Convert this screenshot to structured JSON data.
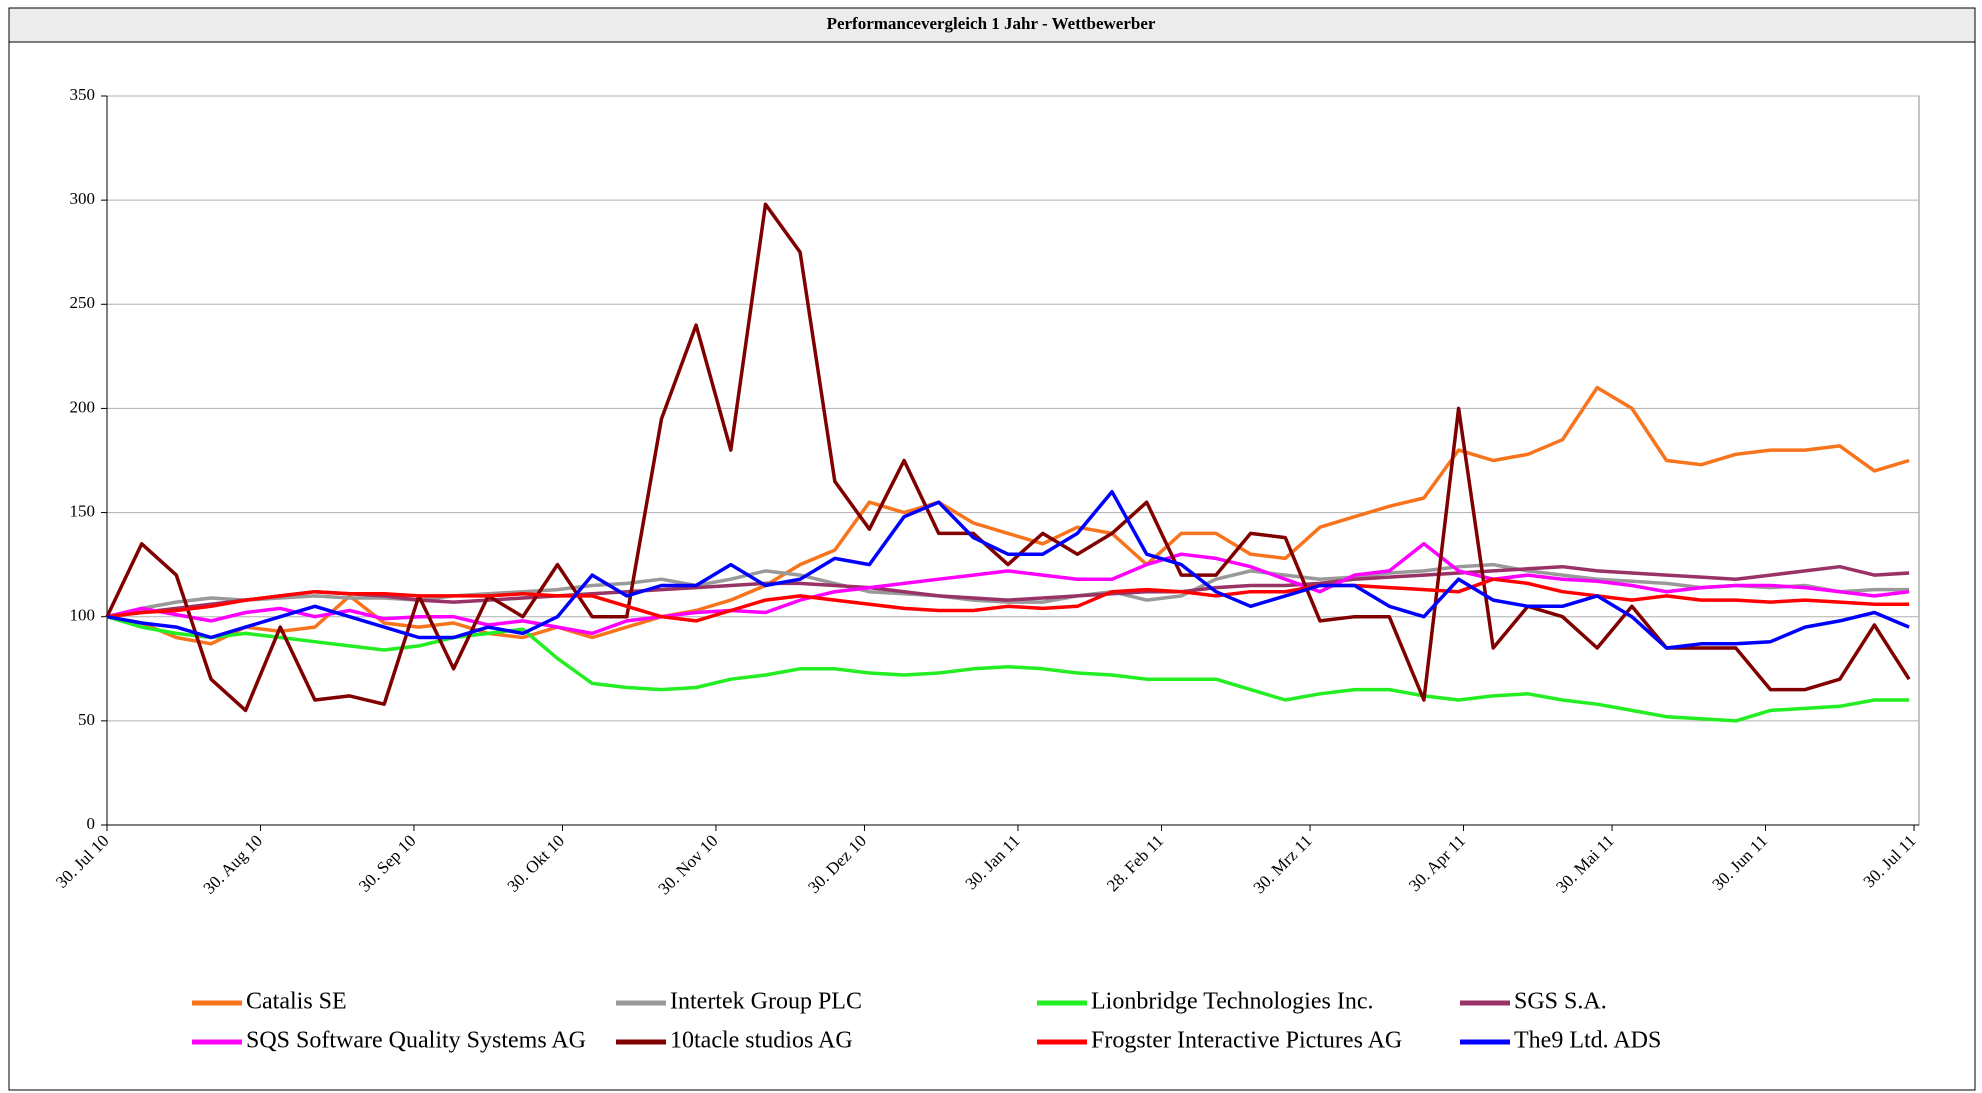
{
  "chart_data": {
    "type": "line",
    "title": "Performancevergleich 1 Jahr - Wettbewerber",
    "x": [
      "2010-07-30",
      "2010-08-06",
      "2010-08-13",
      "2010-08-20",
      "2010-08-27",
      "2010-09-03",
      "2010-09-10",
      "2010-09-17",
      "2010-09-24",
      "2010-10-01",
      "2010-10-08",
      "2010-10-15",
      "2010-10-22",
      "2010-10-29",
      "2010-11-05",
      "2010-11-12",
      "2010-11-19",
      "2010-11-26",
      "2010-12-03",
      "2010-12-10",
      "2010-12-17",
      "2010-12-24",
      "2010-12-31",
      "2011-01-07",
      "2011-01-14",
      "2011-01-21",
      "2011-01-28",
      "2011-02-04",
      "2011-02-11",
      "2011-02-18",
      "2011-02-25",
      "2011-03-04",
      "2011-03-11",
      "2011-03-18",
      "2011-03-25",
      "2011-04-01",
      "2011-04-08",
      "2011-04-15",
      "2011-04-22",
      "2011-04-29",
      "2011-05-06",
      "2011-05-13",
      "2011-05-20",
      "2011-05-27",
      "2011-06-03",
      "2011-06-10",
      "2011-06-17",
      "2011-06-24",
      "2011-07-01",
      "2011-07-08",
      "2011-07-15",
      "2011-07-22",
      "2011-07-29"
    ],
    "xlim": [
      "2010-07-30",
      "2011-07-31"
    ],
    "xticks": [
      {
        "value": "2010-07-30",
        "label": "30. Jul 10"
      },
      {
        "value": "2010-08-30",
        "label": "30. Aug 10"
      },
      {
        "value": "2010-09-30",
        "label": "30. Sep 10"
      },
      {
        "value": "2010-10-30",
        "label": "30. Okt 10"
      },
      {
        "value": "2010-11-30",
        "label": "30. Nov 10"
      },
      {
        "value": "2010-12-30",
        "label": "30. Dez 10"
      },
      {
        "value": "2011-01-30",
        "label": "30. Jan 11"
      },
      {
        "value": "2011-02-28",
        "label": "28. Feb 11"
      },
      {
        "value": "2011-03-30",
        "label": "30. Mrz 11"
      },
      {
        "value": "2011-04-30",
        "label": "30. Apr 11"
      },
      {
        "value": "2011-05-30",
        "label": "30. Mai 11"
      },
      {
        "value": "2011-06-30",
        "label": "30. Jun 11"
      },
      {
        "value": "2011-07-30",
        "label": "30. Jul 11"
      }
    ],
    "ylim": [
      0,
      350
    ],
    "yticks": [
      0,
      50,
      100,
      150,
      200,
      250,
      300,
      350
    ],
    "grid": true,
    "legend": "bottom",
    "series": [
      {
        "name": "Catalis SE",
        "color": "#f7731c",
        "values": [
          100,
          97,
          90,
          87,
          95,
          93,
          95,
          110,
          97,
          95,
          97,
          92,
          90,
          95,
          90,
          95,
          100,
          103,
          108,
          115,
          125,
          132,
          155,
          150,
          155,
          145,
          140,
          135,
          143,
          140,
          125,
          140,
          140,
          130,
          128,
          143,
          148,
          153,
          157,
          180,
          175,
          178,
          185,
          210,
          200,
          175,
          173,
          178,
          180,
          180,
          182,
          170,
          175
        ]
      },
      {
        "name": "Intertek Group PLC",
        "color": "#999999",
        "values": [
          100,
          104,
          107,
          109,
          108,
          109,
          110,
          109,
          109,
          108,
          110,
          111,
          112,
          113,
          115,
          116,
          118,
          115,
          118,
          122,
          120,
          116,
          112,
          111,
          110,
          108,
          107,
          107,
          110,
          112,
          108,
          110,
          118,
          122,
          120,
          118,
          119,
          121,
          122,
          124,
          125,
          122,
          120,
          118,
          117,
          116,
          114,
          115,
          114,
          115,
          112,
          113,
          113
        ]
      },
      {
        "name": "Lionbridge Technologies Inc.",
        "color": "#22ee22",
        "values": [
          100,
          95,
          92,
          90,
          92,
          90,
          88,
          86,
          84,
          86,
          90,
          92,
          94,
          80,
          68,
          66,
          65,
          66,
          70,
          72,
          75,
          75,
          73,
          72,
          73,
          75,
          76,
          75,
          73,
          72,
          70,
          70,
          70,
          65,
          60,
          63,
          65,
          65,
          62,
          60,
          62,
          63,
          60,
          58,
          55,
          52,
          51,
          50,
          55,
          56,
          57,
          60,
          60
        ]
      },
      {
        "name": "SGS S.A.",
        "color": "#993366",
        "values": [
          100,
          102,
          104,
          106,
          108,
          110,
          112,
          111,
          110,
          108,
          107,
          108,
          109,
          110,
          111,
          112,
          113,
          114,
          115,
          116,
          116,
          115,
          114,
          112,
          110,
          109,
          108,
          109,
          110,
          111,
          112,
          112,
          114,
          115,
          115,
          116,
          118,
          119,
          120,
          121,
          122,
          123,
          124,
          122,
          121,
          120,
          119,
          118,
          120,
          122,
          124,
          120,
          121
        ]
      },
      {
        "name": "SQS Software Quality Systems AG",
        "color": "#ff00ff",
        "values": [
          100,
          104,
          101,
          98,
          102,
          104,
          100,
          103,
          99,
          100,
          100,
          96,
          98,
          95,
          92,
          98,
          100,
          102,
          103,
          102,
          108,
          112,
          114,
          116,
          118,
          120,
          122,
          120,
          118,
          118,
          125,
          130,
          128,
          124,
          118,
          112,
          120,
          122,
          135,
          122,
          118,
          120,
          118,
          117,
          115,
          112,
          114,
          115,
          115,
          114,
          112,
          110,
          112
        ]
      },
      {
        "name": "10tacle studios AG",
        "color": "#800000",
        "values": [
          100,
          135,
          120,
          70,
          55,
          95,
          60,
          62,
          58,
          110,
          75,
          110,
          100,
          125,
          100,
          100,
          195,
          240,
          180,
          298,
          275,
          165,
          142,
          175,
          140,
          140,
          125,
          140,
          130,
          140,
          155,
          120,
          120,
          140,
          138,
          98,
          100,
          100,
          60,
          200,
          85,
          105,
          100,
          85,
          105,
          85,
          85,
          85,
          65,
          65,
          70,
          96,
          70
        ]
      },
      {
        "name": "Frogster Interactive Pictures AG",
        "color": "#ff0000",
        "values": [
          100,
          102,
          103,
          105,
          108,
          110,
          112,
          111,
          111,
          110,
          110,
          110,
          111,
          110,
          110,
          105,
          100,
          98,
          103,
          108,
          110,
          108,
          106,
          104,
          103,
          103,
          105,
          104,
          105,
          112,
          113,
          112,
          110,
          112,
          112,
          115,
          115,
          114,
          113,
          112,
          118,
          116,
          112,
          110,
          108,
          110,
          108,
          108,
          107,
          108,
          107,
          106,
          106
        ]
      },
      {
        "name": "The9 Ltd. ADS",
        "color": "#0000ff",
        "values": [
          100,
          97,
          95,
          90,
          95,
          100,
          105,
          100,
          95,
          90,
          90,
          95,
          92,
          100,
          120,
          110,
          115,
          115,
          125,
          115,
          118,
          128,
          125,
          148,
          155,
          138,
          130,
          130,
          140,
          160,
          130,
          125,
          112,
          105,
          110,
          115,
          115,
          105,
          100,
          118,
          108,
          105,
          105,
          110,
          100,
          85,
          87,
          87,
          88,
          95,
          98,
          102,
          95
        ]
      }
    ]
  }
}
